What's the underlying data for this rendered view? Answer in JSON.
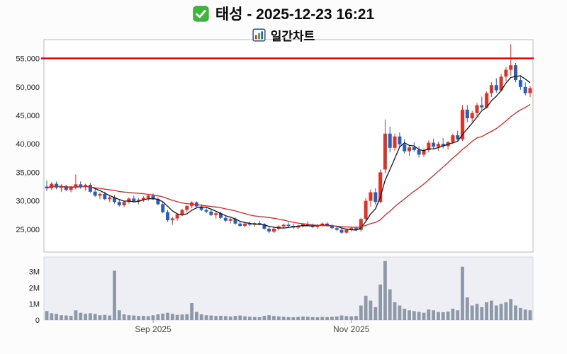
{
  "header": {
    "title": "태성 - 2025-12-23 16:21",
    "subtitle": "일간차트"
  },
  "chart_data": {
    "type": "candlestick",
    "title": "태성 - 2025-12-23 16:21",
    "subtitle": "일간차트",
    "price_axis": {
      "tick_values": [
        55000,
        50000,
        45000,
        40000,
        35000,
        30000,
        25000
      ],
      "min": 21000,
      "max": 58300
    },
    "volume_axis": {
      "tick_values": [
        3000000,
        2000000,
        1000000,
        0
      ],
      "tick_labels": [
        "3M",
        "2M",
        "1M",
        "0"
      ],
      "max": 3900000
    },
    "x_labels": [
      {
        "text": "Sep 2025",
        "index": 22
      },
      {
        "text": "Nov 2025",
        "index": 63
      }
    ],
    "alert_line": {
      "value": 55000,
      "color": "#e00000"
    },
    "moving_averages": [
      {
        "period": 5,
        "color": "#141414"
      },
      {
        "period": 20,
        "color": "#e02424"
      }
    ],
    "colors": {
      "up": "#e03226",
      "down": "#2c5cbe",
      "volume": "#8d98a8"
    },
    "candles": [
      [
        32500,
        33600,
        31700,
        32200,
        550000
      ],
      [
        32200,
        33300,
        31900,
        33000,
        420000
      ],
      [
        33000,
        33400,
        32000,
        32300,
        380000
      ],
      [
        32300,
        32900,
        31600,
        32600,
        300000
      ],
      [
        32600,
        32800,
        31700,
        31900,
        280000
      ],
      [
        31900,
        32600,
        31500,
        32400,
        260000
      ],
      [
        32400,
        34600,
        32000,
        32900,
        600000
      ],
      [
        32900,
        33400,
        32100,
        32500,
        450000
      ],
      [
        32500,
        33000,
        31800,
        32800,
        380000
      ],
      [
        32800,
        33100,
        31400,
        31600,
        420000
      ],
      [
        31600,
        32200,
        30700,
        30900,
        380000
      ],
      [
        30900,
        31500,
        30300,
        31200,
        300000
      ],
      [
        31200,
        31600,
        30100,
        30300,
        320000
      ],
      [
        30300,
        30900,
        29800,
        30600,
        280000
      ],
      [
        30600,
        31000,
        29500,
        29800,
        3050000
      ],
      [
        29800,
        30300,
        29000,
        29200,
        600000
      ],
      [
        29200,
        30000,
        28900,
        29800,
        350000
      ],
      [
        29800,
        30600,
        29500,
        30400,
        300000
      ],
      [
        30400,
        30900,
        29700,
        29900,
        280000
      ],
      [
        29900,
        30500,
        29400,
        30200,
        250000
      ],
      [
        30200,
        30800,
        29800,
        30500,
        260000
      ],
      [
        30500,
        31100,
        30000,
        30900,
        240000
      ],
      [
        30900,
        31300,
        30100,
        30300,
        300000
      ],
      [
        30300,
        30600,
        29200,
        29400,
        350000
      ],
      [
        29400,
        29800,
        27800,
        28000,
        400000
      ],
      [
        28000,
        28400,
        26300,
        26600,
        450000
      ],
      [
        26600,
        27200,
        25800,
        26900,
        380000
      ],
      [
        26900,
        27800,
        26500,
        27600,
        320000
      ],
      [
        27600,
        28600,
        27300,
        28400,
        340000
      ],
      [
        28400,
        29300,
        28000,
        29100,
        360000
      ],
      [
        29100,
        29900,
        28700,
        29700,
        1050000
      ],
      [
        29700,
        29900,
        28800,
        29000,
        500000
      ],
      [
        29000,
        29400,
        28200,
        28400,
        350000
      ],
      [
        28400,
        28900,
        27800,
        28100,
        300000
      ],
      [
        28100,
        28500,
        27300,
        27500,
        280000
      ],
      [
        27500,
        28000,
        26900,
        27800,
        250000
      ],
      [
        27800,
        28100,
        26800,
        27000,
        260000
      ],
      [
        27000,
        27400,
        26300,
        26500,
        240000
      ],
      [
        26500,
        27000,
        26000,
        26800,
        220000
      ],
      [
        26800,
        27100,
        25800,
        26000,
        260000
      ],
      [
        26000,
        26500,
        25400,
        25600,
        280000
      ],
      [
        25600,
        26200,
        25300,
        26000,
        230000
      ],
      [
        26000,
        26400,
        25600,
        25800,
        200000
      ],
      [
        25800,
        26300,
        25400,
        26100,
        190000
      ],
      [
        26100,
        26500,
        25700,
        25900,
        180000
      ],
      [
        25900,
        26100,
        24900,
        25100,
        260000
      ],
      [
        25100,
        25400,
        24300,
        24600,
        300000
      ],
      [
        24600,
        25300,
        24400,
        25100,
        250000
      ],
      [
        25100,
        25700,
        24800,
        25500,
        220000
      ],
      [
        25500,
        26000,
        25200,
        25800,
        200000
      ],
      [
        25800,
        26200,
        25400,
        25600,
        180000
      ],
      [
        25600,
        26000,
        25100,
        25300,
        170000
      ],
      [
        25300,
        25800,
        25000,
        25600,
        190000
      ],
      [
        25600,
        26100,
        25300,
        25900,
        210000
      ],
      [
        25900,
        26400,
        25500,
        25700,
        200000
      ],
      [
        25700,
        26000,
        25200,
        25400,
        180000
      ],
      [
        25400,
        25900,
        25100,
        25700,
        170000
      ],
      [
        25700,
        26200,
        25400,
        26000,
        190000
      ],
      [
        26000,
        26300,
        25500,
        25700,
        180000
      ],
      [
        25700,
        25900,
        25000,
        25200,
        200000
      ],
      [
        25200,
        25600,
        24700,
        24900,
        220000
      ],
      [
        24900,
        25200,
        24200,
        24400,
        280000
      ],
      [
        24400,
        25100,
        24200,
        24900,
        240000
      ],
      [
        24900,
        25400,
        24600,
        25200,
        230000
      ],
      [
        25200,
        25500,
        24700,
        24900,
        250000
      ],
      [
        24900,
        27000,
        24600,
        26800,
        900000
      ],
      [
        26800,
        30500,
        26500,
        30000,
        1500000
      ],
      [
        30000,
        32000,
        29000,
        31500,
        1200000
      ],
      [
        31500,
        32200,
        29300,
        29800,
        800000
      ],
      [
        29800,
        35500,
        29600,
        35000,
        2200000
      ],
      [
        35500,
        44300,
        34800,
        41800,
        3650000
      ],
      [
        41800,
        43000,
        38500,
        39300,
        1900000
      ],
      [
        39300,
        41800,
        38800,
        41300,
        1100000
      ],
      [
        41300,
        42000,
        39500,
        39900,
        900000
      ],
      [
        39900,
        40800,
        38300,
        38700,
        700000
      ],
      [
        38700,
        39800,
        37900,
        39400,
        600000
      ],
      [
        39400,
        40300,
        38600,
        38900,
        550000
      ],
      [
        38900,
        39600,
        37600,
        38100,
        500000
      ],
      [
        38100,
        39200,
        37700,
        38900,
        450000
      ],
      [
        38900,
        40600,
        38500,
        40200,
        650000
      ],
      [
        40200,
        40900,
        39100,
        39500,
        600000
      ],
      [
        39500,
        40400,
        38800,
        40000,
        500000
      ],
      [
        40000,
        41000,
        39200,
        39600,
        480000
      ],
      [
        39600,
        40500,
        39000,
        40300,
        520000
      ],
      [
        40300,
        41800,
        40000,
        41500,
        700000
      ],
      [
        41500,
        42300,
        40400,
        40800,
        600000
      ],
      [
        40800,
        46800,
        40500,
        46000,
        3300000
      ],
      [
        46000,
        46800,
        43800,
        44500,
        1400000
      ],
      [
        44500,
        45800,
        43900,
        45400,
        900000
      ],
      [
        45400,
        47200,
        44800,
        46800,
        1000000
      ],
      [
        46800,
        48300,
        46000,
        46400,
        800000
      ],
      [
        46400,
        49200,
        46200,
        48900,
        1100000
      ],
      [
        48900,
        50800,
        48200,
        50300,
        1200000
      ],
      [
        50300,
        51500,
        49000,
        49400,
        900000
      ],
      [
        49400,
        52300,
        49200,
        51800,
        1000000
      ],
      [
        51800,
        53500,
        51000,
        53000,
        1100000
      ],
      [
        53000,
        57500,
        52000,
        53800,
        1300000
      ],
      [
        53800,
        54200,
        50800,
        51200,
        900000
      ],
      [
        51200,
        52000,
        49500,
        50000,
        750000
      ],
      [
        50000,
        50800,
        48500,
        48900,
        650000
      ],
      [
        48900,
        50200,
        48200,
        49800,
        600000
      ]
    ]
  }
}
